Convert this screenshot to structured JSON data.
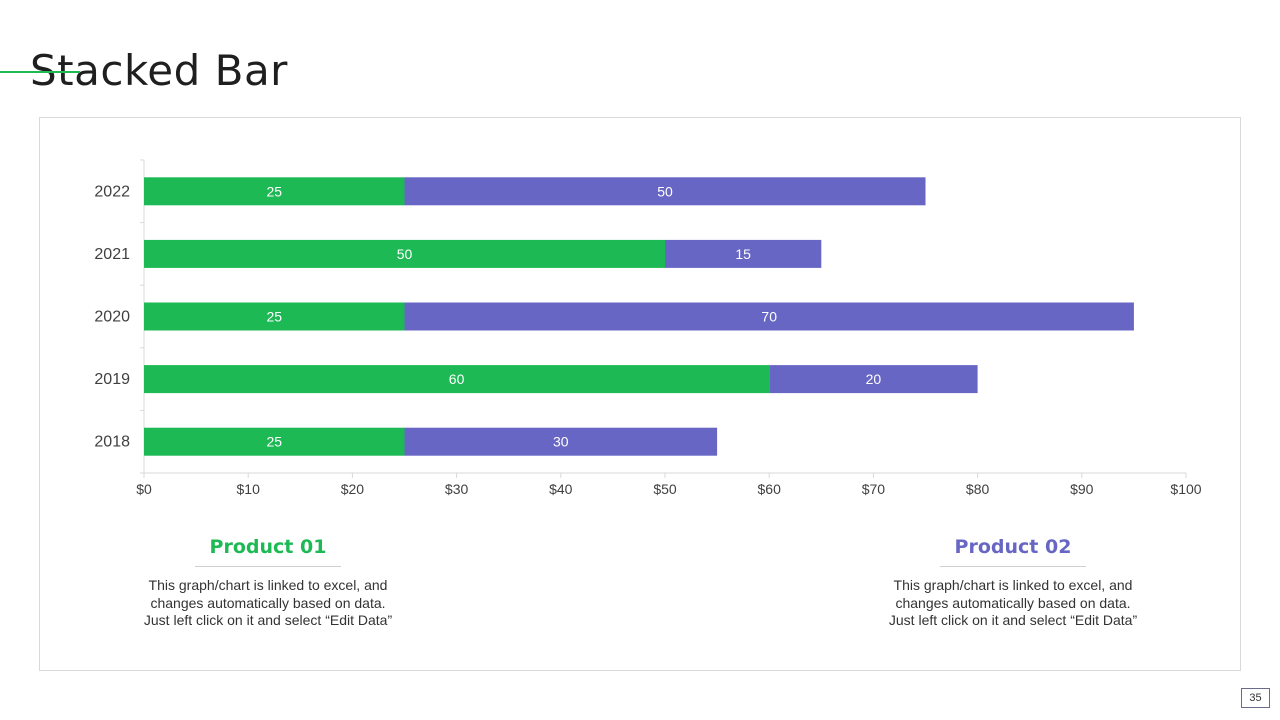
{
  "slide": {
    "title": "Stacked Bar",
    "page_number": "35"
  },
  "colors": {
    "product_01": "#1db954",
    "product_02": "#6766c4",
    "axis": "#d9d9d9",
    "tick_text": "#404040",
    "label_text": "#ffffff"
  },
  "legend": {
    "product_01": {
      "title": "Product 01",
      "description_lines": [
        "This graph/chart is linked to excel, and",
        "changes automatically based on data.",
        "Just left click on it and select “Edit Data”"
      ]
    },
    "product_02": {
      "title": "Product 02",
      "description_lines": [
        "This graph/chart is linked to excel, and",
        "changes automatically based on data.",
        "Just left click on it and select “Edit Data”"
      ]
    }
  },
  "chart_data": {
    "type": "bar",
    "orientation": "horizontal",
    "stacked": true,
    "title": "",
    "xlabel": "",
    "ylabel": "",
    "categories": [
      "2018",
      "2019",
      "2020",
      "2021",
      "2022"
    ],
    "series": [
      {
        "name": "Product 01",
        "values": [
          25,
          60,
          25,
          50,
          25
        ],
        "color": "#1db954"
      },
      {
        "name": "Product 02",
        "values": [
          30,
          20,
          70,
          15,
          50
        ],
        "color": "#6766c4"
      }
    ],
    "xlim": [
      0,
      100
    ],
    "x_ticks": [
      0,
      10,
      20,
      30,
      40,
      50,
      60,
      70,
      80,
      90,
      100
    ],
    "x_tick_labels": [
      "$0",
      "$10",
      "$20",
      "$30",
      "$40",
      "$50",
      "$60",
      "$70",
      "$80",
      "$90",
      "$100"
    ],
    "data_labels": true,
    "grid": false,
    "legend": "none"
  }
}
